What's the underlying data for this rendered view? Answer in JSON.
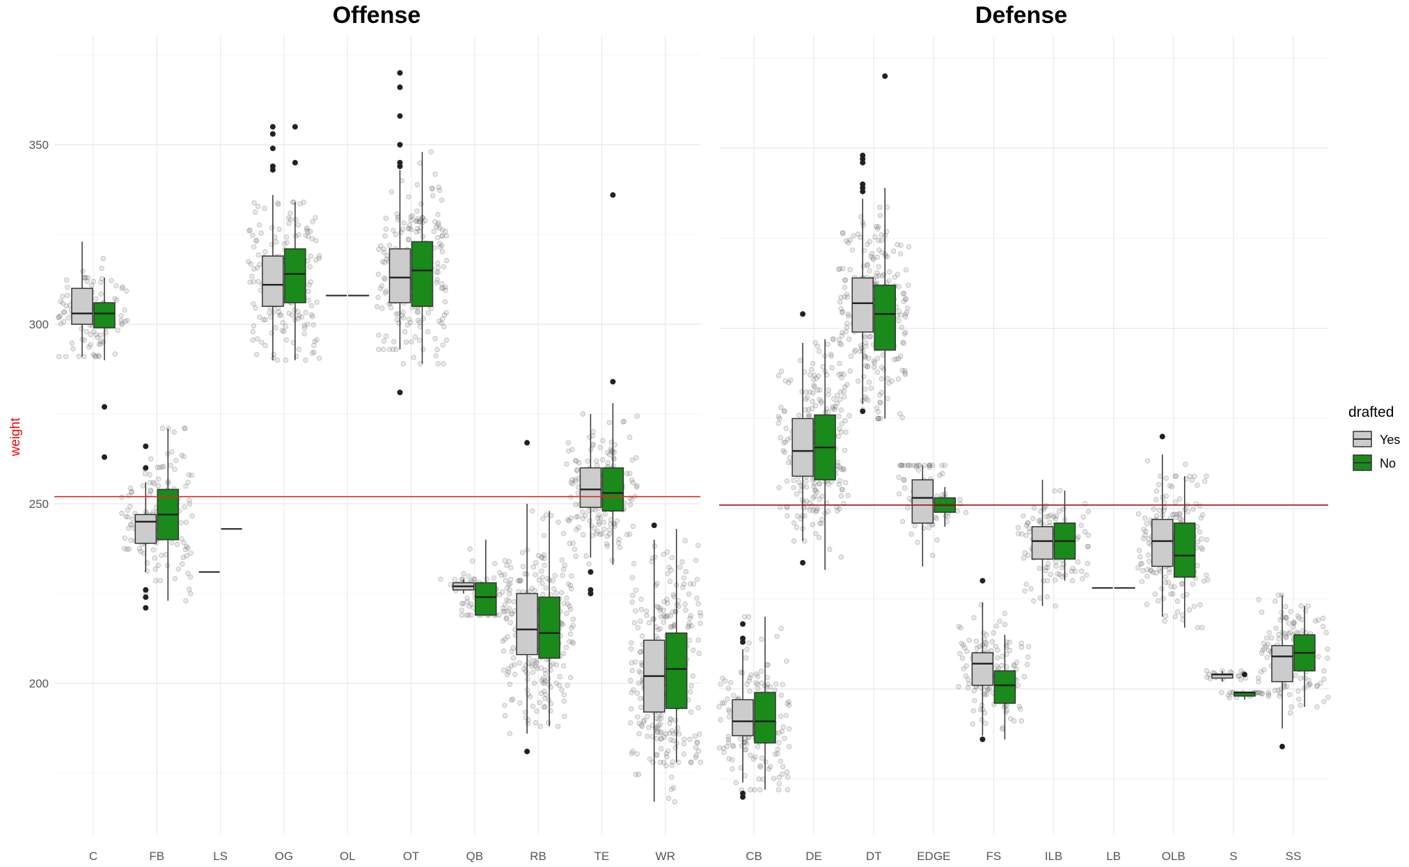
{
  "chart_data": {
    "type": "box",
    "ylabel": "weight",
    "y_ticks": [
      200,
      250,
      300,
      350
    ],
    "ylim": [
      170,
      378
    ],
    "grid": true,
    "legend": {
      "title": "drafted",
      "position": "right",
      "items": [
        {
          "label": "Yes",
          "color": "#cccccc"
        },
        {
          "label": "No",
          "color": "#1a8a1a"
        }
      ]
    },
    "panels": [
      {
        "title": "Offense",
        "mean_line": 252,
        "categories": [
          "C",
          "FB",
          "LS",
          "OG",
          "OL",
          "OT",
          "QB",
          "RB",
          "TE",
          "WR"
        ],
        "boxes": [
          {
            "cat": "C",
            "group": "Yes",
            "q1": 300,
            "median": 303,
            "q3": 310,
            "lower": 291,
            "upper": 323
          },
          {
            "cat": "C",
            "group": "No",
            "q1": 299,
            "median": 303,
            "q3": 306,
            "lower": 290,
            "upper": 313
          },
          {
            "cat": "FB",
            "group": "Yes",
            "q1": 239,
            "median": 245,
            "q3": 247,
            "lower": 231,
            "upper": 256
          },
          {
            "cat": "FB",
            "group": "No",
            "q1": 240,
            "median": 247,
            "q3": 254,
            "lower": 223,
            "upper": 271
          },
          {
            "cat": "LS",
            "group": "Yes",
            "q1": 231,
            "median": 231,
            "q3": 231,
            "lower": 231,
            "upper": 231
          },
          {
            "cat": "LS",
            "group": "No",
            "q1": 243,
            "median": 243,
            "q3": 243,
            "lower": 243,
            "upper": 243
          },
          {
            "cat": "OG",
            "group": "Yes",
            "q1": 305,
            "median": 311,
            "q3": 319,
            "lower": 290,
            "upper": 336
          },
          {
            "cat": "OG",
            "group": "No",
            "q1": 306,
            "median": 314,
            "q3": 321,
            "lower": 290,
            "upper": 334
          },
          {
            "cat": "OL",
            "group": "Yes",
            "q1": 308,
            "median": 308,
            "q3": 308,
            "lower": 308,
            "upper": 308
          },
          {
            "cat": "OL",
            "group": "No",
            "q1": 308,
            "median": 308,
            "q3": 308,
            "lower": 308,
            "upper": 308
          },
          {
            "cat": "OT",
            "group": "Yes",
            "q1": 306,
            "median": 313,
            "q3": 321,
            "lower": 293,
            "upper": 343
          },
          {
            "cat": "OT",
            "group": "No",
            "q1": 305,
            "median": 315,
            "q3": 323,
            "lower": 289,
            "upper": 348
          },
          {
            "cat": "QB",
            "group": "Yes",
            "q1": 226,
            "median": 227,
            "q3": 228,
            "lower": 225,
            "upper": 229
          },
          {
            "cat": "QB",
            "group": "No",
            "q1": 219,
            "median": 224,
            "q3": 228,
            "lower": 219,
            "upper": 240
          },
          {
            "cat": "RB",
            "group": "Yes",
            "q1": 208,
            "median": 215,
            "q3": 225,
            "lower": 186,
            "upper": 250
          },
          {
            "cat": "RB",
            "group": "No",
            "q1": 207,
            "median": 214,
            "q3": 224,
            "lower": 188,
            "upper": 248
          },
          {
            "cat": "TE",
            "group": "Yes",
            "q1": 249,
            "median": 254,
            "q3": 260,
            "lower": 235,
            "upper": 275
          },
          {
            "cat": "TE",
            "group": "No",
            "q1": 248,
            "median": 253,
            "q3": 260,
            "lower": 233,
            "upper": 278
          },
          {
            "cat": "WR",
            "group": "Yes",
            "q1": 192,
            "median": 202,
            "q3": 212,
            "lower": 167,
            "upper": 240
          },
          {
            "cat": "WR",
            "group": "No",
            "q1": 193,
            "median": 204,
            "q3": 214,
            "lower": 178,
            "upper": 243
          }
        ],
        "outliers": [
          {
            "cat": "C",
            "group": "No",
            "values": [
              277,
              263
            ]
          },
          {
            "cat": "FB",
            "group": "Yes",
            "values": [
              266,
              260,
              226,
              224,
              221
            ]
          },
          {
            "cat": "OG",
            "group": "Yes",
            "values": [
              355,
              353,
              349,
              344,
              343
            ]
          },
          {
            "cat": "OG",
            "group": "No",
            "values": [
              355,
              345
            ]
          },
          {
            "cat": "OT",
            "group": "Yes",
            "values": [
              370,
              366,
              358,
              350,
              345,
              344,
              281
            ]
          },
          {
            "cat": "RB",
            "group": "Yes",
            "values": [
              267,
              181
            ]
          },
          {
            "cat": "TE",
            "group": "Yes",
            "values": [
              231,
              226,
              225
            ]
          },
          {
            "cat": "TE",
            "group": "No",
            "values": [
              336,
              284
            ]
          },
          {
            "cat": "WR",
            "group": "Yes",
            "values": [
              244
            ]
          }
        ]
      },
      {
        "title": "Defense",
        "mean_line": 251,
        "categories": [
          "CB",
          "DE",
          "DT",
          "EDGE",
          "FS",
          "ILB",
          "LB",
          "OLB",
          "S",
          "SS"
        ],
        "boxes": [
          {
            "cat": "CB",
            "group": "Yes",
            "q1": 187,
            "median": 191,
            "q3": 197,
            "lower": 174,
            "upper": 211
          },
          {
            "cat": "CB",
            "group": "No",
            "q1": 185,
            "median": 191,
            "q3": 199,
            "lower": 172,
            "upper": 220
          },
          {
            "cat": "DE",
            "group": "Yes",
            "q1": 259,
            "median": 266,
            "q3": 275,
            "lower": 241,
            "upper": 296
          },
          {
            "cat": "DE",
            "group": "No",
            "q1": 258,
            "median": 267,
            "q3": 276,
            "lower": 233,
            "upper": 297
          },
          {
            "cat": "DT",
            "group": "Yes",
            "q1": 299,
            "median": 307,
            "q3": 314,
            "lower": 279,
            "upper": 336
          },
          {
            "cat": "DT",
            "group": "No",
            "q1": 294,
            "median": 304,
            "q3": 312,
            "lower": 275,
            "upper": 339
          },
          {
            "cat": "EDGE",
            "group": "Yes",
            "q1": 246,
            "median": 253,
            "q3": 258,
            "lower": 234,
            "upper": 262
          },
          {
            "cat": "EDGE",
            "group": "No",
            "q1": 249,
            "median": 251,
            "q3": 253,
            "lower": 245,
            "upper": 256
          },
          {
            "cat": "FS",
            "group": "Yes",
            "q1": 201,
            "median": 207,
            "q3": 210,
            "lower": 187,
            "upper": 224
          },
          {
            "cat": "FS",
            "group": "No",
            "q1": 196,
            "median": 201,
            "q3": 205,
            "lower": 186,
            "upper": 215
          },
          {
            "cat": "ILB",
            "group": "Yes",
            "q1": 236,
            "median": 241,
            "q3": 245,
            "lower": 223,
            "upper": 258
          },
          {
            "cat": "ILB",
            "group": "No",
            "q1": 236,
            "median": 241,
            "q3": 246,
            "lower": 230,
            "upper": 255
          },
          {
            "cat": "LB",
            "group": "Yes",
            "q1": 228,
            "median": 228,
            "q3": 228,
            "lower": 228,
            "upper": 228
          },
          {
            "cat": "LB",
            "group": "No",
            "q1": 228,
            "median": 228,
            "q3": 228,
            "lower": 228,
            "upper": 228
          },
          {
            "cat": "OLB",
            "group": "Yes",
            "q1": 234,
            "median": 241,
            "q3": 247,
            "lower": 220,
            "upper": 265
          },
          {
            "cat": "OLB",
            "group": "No",
            "q1": 231,
            "median": 237,
            "q3": 246,
            "lower": 217,
            "upper": 259
          },
          {
            "cat": "S",
            "group": "Yes",
            "q1": 203,
            "median": 204,
            "q3": 204,
            "lower": 202,
            "upper": 205
          },
          {
            "cat": "S",
            "group": "No",
            "q1": 198,
            "median": 199,
            "q3": 199,
            "lower": 197,
            "upper": 199
          },
          {
            "cat": "SS",
            "group": "Yes",
            "q1": 202,
            "median": 209,
            "q3": 212,
            "lower": 189,
            "upper": 226
          },
          {
            "cat": "SS",
            "group": "No",
            "q1": 205,
            "median": 210,
            "q3": 215,
            "lower": 195,
            "upper": 223
          }
        ],
        "outliers": [
          {
            "cat": "CB",
            "group": "Yes",
            "values": [
              218,
              214,
              213,
              171,
              170
            ]
          },
          {
            "cat": "DE",
            "group": "Yes",
            "values": [
              304,
              235
            ]
          },
          {
            "cat": "DT",
            "group": "Yes",
            "values": [
              348,
              347,
              346,
              340,
              339,
              338,
              277
            ]
          },
          {
            "cat": "DT",
            "group": "No",
            "values": [
              370
            ]
          },
          {
            "cat": "FS",
            "group": "Yes",
            "values": [
              230,
              186
            ]
          },
          {
            "cat": "OLB",
            "group": "Yes",
            "values": [
              270
            ]
          },
          {
            "cat": "S",
            "group": "No",
            "values": [
              204
            ]
          },
          {
            "cat": "SS",
            "group": "Yes",
            "values": [
              184
            ]
          }
        ]
      }
    ]
  }
}
